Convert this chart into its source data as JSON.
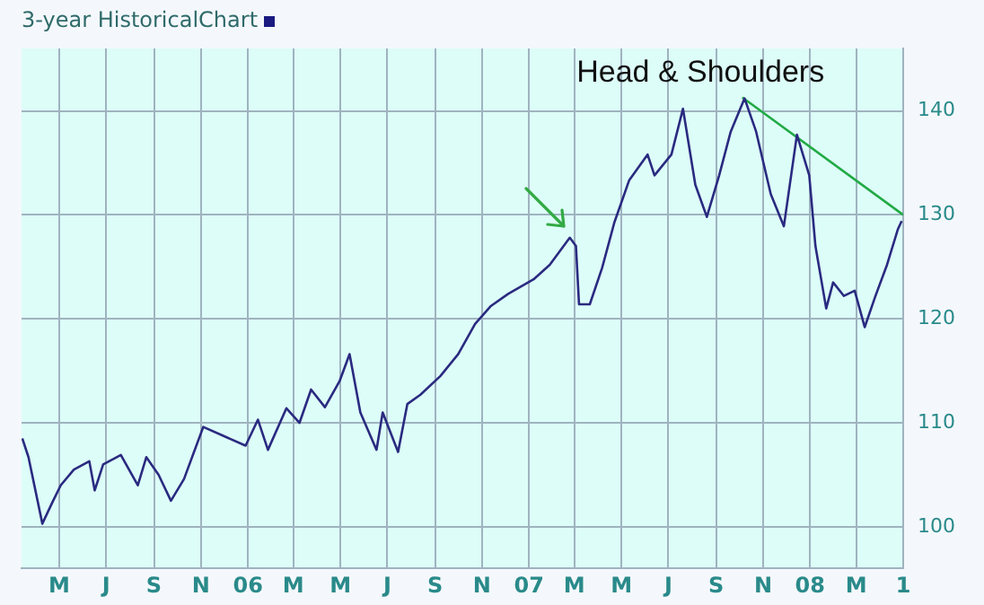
{
  "chart_data": {
    "type": "line",
    "title": "3-year HistoricalChart",
    "annotations": [
      "Head & Shoulders"
    ],
    "xlim": [
      "2005-03-13",
      "2008-05-01"
    ],
    "xticks": [
      {
        "value": "2005-05-01",
        "label": "M"
      },
      {
        "value": "2005-07-01",
        "label": "J"
      },
      {
        "value": "2005-09-01",
        "label": "S"
      },
      {
        "value": "2005-11-01",
        "label": "N"
      },
      {
        "value": "2006-01-01",
        "label": "06"
      },
      {
        "value": "2006-03-01",
        "label": "M"
      },
      {
        "value": "2006-05-01",
        "label": "M"
      },
      {
        "value": "2006-07-01",
        "label": "J"
      },
      {
        "value": "2006-09-01",
        "label": "S"
      },
      {
        "value": "2006-11-01",
        "label": "N"
      },
      {
        "value": "2007-01-01",
        "label": "07"
      },
      {
        "value": "2007-03-01",
        "label": "M"
      },
      {
        "value": "2007-05-01",
        "label": "M"
      },
      {
        "value": "2007-07-01",
        "label": "J"
      },
      {
        "value": "2007-09-01",
        "label": "S"
      },
      {
        "value": "2007-11-01",
        "label": "N"
      },
      {
        "value": "2008-01-01",
        "label": "08"
      },
      {
        "value": "2008-03-01",
        "label": "M"
      },
      {
        "value": "2008-05-01",
        "label": "1"
      }
    ],
    "ylim": [
      96,
      146
    ],
    "yticks": [
      100,
      110,
      120,
      130,
      140
    ],
    "grid": true,
    "legend": false,
    "series": [
      {
        "color": "#2a2a80",
        "x": [
          "2005-03-14",
          "2005-03-22",
          "2005-04-09",
          "2005-04-23",
          "2005-05-03",
          "2005-05-20",
          "2005-06-09",
          "2005-06-16",
          "2005-06-27",
          "2005-07-20",
          "2005-08-11",
          "2005-08-22",
          "2005-09-07",
          "2005-09-23",
          "2005-10-10",
          "2005-11-04",
          "2005-12-29",
          "2006-01-14",
          "2006-01-27",
          "2006-02-20",
          "2006-03-09",
          "2006-03-24",
          "2006-04-11",
          "2006-04-30",
          "2006-05-13",
          "2006-05-27",
          "2006-06-17",
          "2006-06-25",
          "2006-07-15",
          "2006-07-27",
          "2006-08-13",
          "2006-09-08",
          "2006-10-01",
          "2006-10-23",
          "2006-11-12",
          "2006-12-05",
          "2007-01-07",
          "2007-01-28",
          "2007-02-23",
          "2007-03-03",
          "2007-03-07",
          "2007-03-21",
          "2007-04-06",
          "2007-04-22",
          "2007-05-11",
          "2007-06-04",
          "2007-06-13",
          "2007-07-05",
          "2007-07-20",
          "2007-08-05",
          "2007-08-20",
          "2007-09-05",
          "2007-09-20",
          "2007-10-08",
          "2007-10-23",
          "2007-11-11",
          "2007-11-28",
          "2007-12-15",
          "2007-12-31",
          "2008-01-08",
          "2008-01-22",
          "2008-01-31",
          "2008-02-14",
          "2008-02-28",
          "2008-03-12",
          "2008-03-26",
          "2008-04-10",
          "2008-04-24",
          "2008-04-29"
        ],
        "values": [
          108.5,
          106.7,
          100.3,
          102.5,
          104,
          105.5,
          106.3,
          103.5,
          106,
          106.9,
          104,
          106.7,
          105,
          102.5,
          104.6,
          109.6,
          107.8,
          110.3,
          107.4,
          111.4,
          110,
          113.2,
          111.5,
          114,
          116.6,
          111,
          107.4,
          111,
          107.2,
          111.8,
          112.7,
          114.5,
          116.6,
          119.5,
          121.2,
          122.4,
          123.8,
          125.2,
          127.8,
          127,
          121.4,
          121.4,
          124.9,
          129.3,
          133.3,
          135.8,
          133.8,
          135.8,
          140.2,
          132.9,
          129.8,
          133.8,
          138,
          141.2,
          138,
          132,
          128.9,
          137.7,
          133.8,
          127,
          121,
          123.5,
          122.2,
          122.7,
          119.2,
          122.2,
          125.2,
          128.6,
          129.4
        ]
      },
      {
        "color": "#22aa44",
        "x": [
          "2007-10-05",
          "2008-05-01"
        ],
        "values": [
          141.3,
          130
        ]
      }
    ]
  }
}
